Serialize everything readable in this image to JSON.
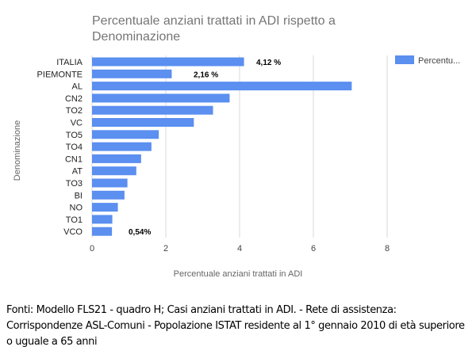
{
  "chart_data": {
    "type": "bar",
    "orientation": "horizontal",
    "title": "Percentuale anziani trattati in ADI rispetto a Denominazione",
    "title_lines": [
      "Percentuale anziani trattati in ADI rispetto a",
      "Denominazione"
    ],
    "xlabel": "Percentuale anziani trattati in ADI",
    "ylabel": "Denominazione",
    "xlim": [
      0,
      8
    ],
    "xticks": [
      0,
      2,
      4,
      6,
      8
    ],
    "grid": true,
    "legend": {
      "entries": [
        "Percentu..."
      ],
      "placement": "top-right"
    },
    "categories": [
      "ITALIA",
      "PIEMONTE",
      "AL",
      "CN2",
      "TO2",
      "VC",
      "TO5",
      "TO4",
      "CN1",
      "AT",
      "TO3",
      "BI",
      "NO",
      "TO1",
      "VCO"
    ],
    "series": [
      {
        "name": "Percentu...",
        "color": "#5b8ff0",
        "values": [
          4.12,
          2.16,
          7.04,
          3.73,
          3.28,
          2.76,
          1.81,
          1.61,
          1.33,
          1.2,
          0.96,
          0.88,
          0.7,
          0.55,
          0.54
        ]
      }
    ],
    "annotations": [
      {
        "category": "ITALIA",
        "text": "4,12 %"
      },
      {
        "category": "PIEMONTE",
        "text": "2,16 %"
      },
      {
        "category": "VCO",
        "text": "0,54%"
      }
    ]
  },
  "footnote": {
    "lines": [
      "Fonti: Modello FLS21 - quadro H; Casi anziani trattati in ADI. - Rete di assistenza:",
      "Corrispondenze ASL-Comuni - Popolazione ISTAT residente al 1° gennaio 2010 di età superiore",
      "o uguale a 65 anni"
    ]
  }
}
